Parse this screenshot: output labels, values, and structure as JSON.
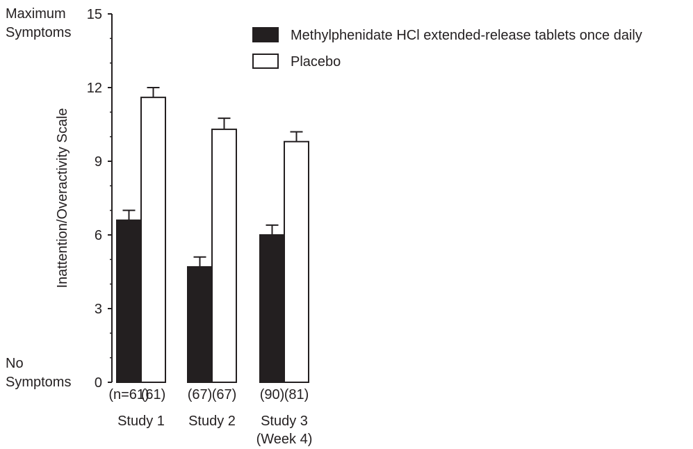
{
  "chart_data": {
    "type": "bar",
    "ylabel": "Inattention/Overactivity Scale",
    "ylim": [
      0,
      15
    ],
    "yticks": [
      0,
      3,
      6,
      9,
      12,
      15
    ],
    "ytick_labels": [
      "0",
      "3",
      "6",
      "9",
      "12",
      "15"
    ],
    "y_max_annotation": [
      "Maximum",
      "Symptoms"
    ],
    "y_min_annotation": [
      "No",
      "Symptoms"
    ],
    "groups": [
      {
        "label": "Study 1",
        "sublabel": "",
        "n_labels": [
          "(n=61)",
          "(61)"
        ]
      },
      {
        "label": "Study 2",
        "sublabel": "",
        "n_labels": [
          "(67)",
          "(67)"
        ]
      },
      {
        "label": "Study 3",
        "sublabel": "(Week 4)",
        "n_labels": [
          "(90)",
          "(81)"
        ]
      }
    ],
    "series": [
      {
        "name": "Methylphenidate HCl extended-release tablets once daily",
        "color": "#231f20",
        "values": [
          6.6,
          4.7,
          6.0
        ],
        "error": [
          0.4,
          0.4,
          0.4
        ]
      },
      {
        "name": "Placebo",
        "color": "#ffffff",
        "values": [
          11.6,
          10.3,
          9.8
        ],
        "error": [
          0.4,
          0.45,
          0.4
        ]
      }
    ],
    "legend_position": "top-right",
    "grid": false
  }
}
